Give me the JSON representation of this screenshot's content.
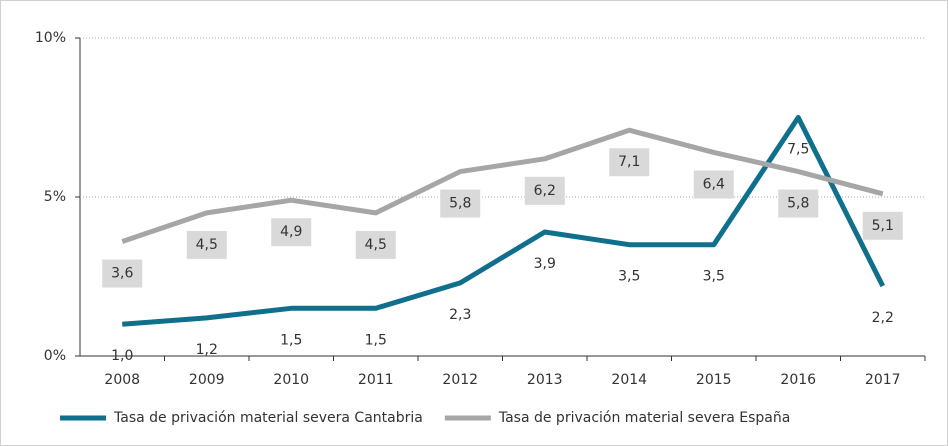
{
  "chart_data": {
    "type": "line",
    "categories": [
      "2008",
      "2009",
      "2010",
      "2011",
      "2012",
      "2013",
      "2014",
      "2015",
      "2016",
      "2017"
    ],
    "series": [
      {
        "name": "Tasa de privación material severa Cantabria",
        "color": "#0f6f8c",
        "values": [
          1.0,
          1.2,
          1.5,
          1.5,
          2.3,
          3.9,
          3.5,
          3.5,
          7.5,
          2.2
        ],
        "value_labels": [
          "1,0",
          "1,2",
          "1,5",
          "1,5",
          "2,3",
          "3,9",
          "3,5",
          "3,5",
          "7,5",
          "2,2"
        ]
      },
      {
        "name": "Tasa de privación material severa España",
        "color": "#a6a6a6",
        "values": [
          3.6,
          4.5,
          4.9,
          4.5,
          5.8,
          6.2,
          7.1,
          6.4,
          5.8,
          5.1
        ],
        "value_labels": [
          "3,6",
          "4,5",
          "4,9",
          "4,5",
          "5,8",
          "6,2",
          "7,1",
          "6,4",
          "5,8",
          "5,1"
        ]
      }
    ],
    "ylim": [
      0,
      10
    ],
    "yticks": [
      {
        "value": 0,
        "label": "0%"
      },
      {
        "value": 5,
        "label": "5%"
      },
      {
        "value": 10,
        "label": "10%"
      }
    ],
    "grid": true,
    "legend": "bottom"
  }
}
